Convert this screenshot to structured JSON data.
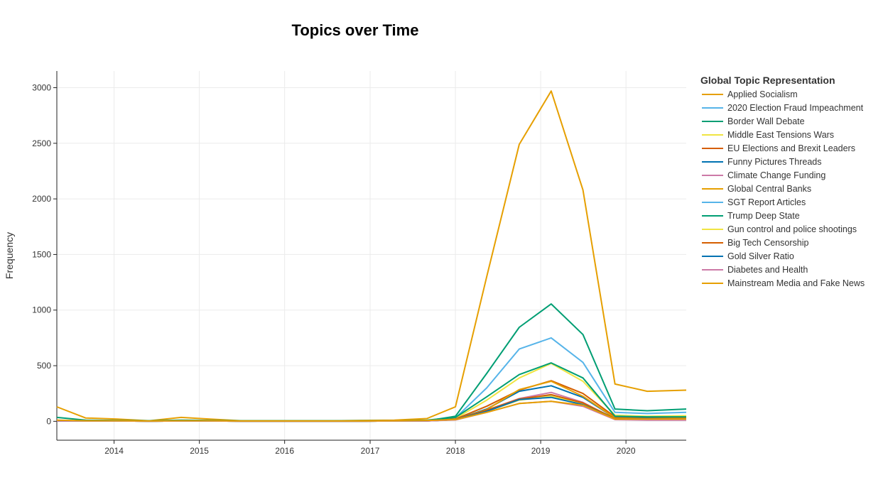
{
  "chart_data": {
    "type": "line",
    "title": "Topics over Time",
    "xlabel": "",
    "ylabel": "Frequency",
    "legend_title": "Global Topic Representation",
    "legend_position": "right",
    "grid": true,
    "xlim": [
      "2013-05-01",
      "2020-09-15"
    ],
    "ylim": [
      -170,
      3150
    ],
    "x_ticks": [
      "2014",
      "2015",
      "2016",
      "2017",
      "2018",
      "2019",
      "2020"
    ],
    "y_ticks": [
      "0",
      "500",
      "1000",
      "1500",
      "2000",
      "2500",
      "3000"
    ],
    "x": [
      "2013-05-01",
      "2013-09-01",
      "2014-01-15",
      "2014-06-01",
      "2014-10-15",
      "2015-02-15",
      "2015-07-01",
      "2015-11-15",
      "2016-03-15",
      "2016-08-01",
      "2016-12-01",
      "2017-04-15",
      "2017-09-01",
      "2018-01-01",
      "2018-05-15",
      "2018-10-01",
      "2019-02-15",
      "2019-07-01",
      "2019-11-15",
      "2020-04-01",
      "2020-09-15"
    ],
    "series": [
      {
        "name": "Applied Socialism",
        "color": "#E69F00",
        "values": [
          130,
          30,
          20,
          5,
          35,
          20,
          5,
          5,
          5,
          5,
          8,
          10,
          25,
          130,
          1300,
          2490,
          2970,
          2080,
          335,
          270,
          280
        ]
      },
      {
        "name": "2020 Election Fraud Impeachment",
        "color": "#56B4E9",
        "values": [
          5,
          3,
          3,
          2,
          3,
          3,
          2,
          2,
          2,
          2,
          2,
          3,
          5,
          30,
          300,
          650,
          750,
          530,
          80,
          70,
          80
        ]
      },
      {
        "name": "Border Wall Debate",
        "color": "#009E73",
        "values": [
          5,
          3,
          3,
          2,
          3,
          3,
          2,
          2,
          2,
          2,
          2,
          3,
          5,
          45,
          430,
          845,
          1055,
          780,
          110,
          95,
          110
        ]
      },
      {
        "name": "Middle East Tensions Wars",
        "color": "#F0E442",
        "values": [
          5,
          3,
          3,
          2,
          3,
          3,
          2,
          2,
          2,
          2,
          2,
          3,
          5,
          25,
          190,
          390,
          520,
          360,
          55,
          45,
          50
        ]
      },
      {
        "name": "EU Elections and Brexit Leaders",
        "color": "#D55E00",
        "values": [
          5,
          3,
          3,
          2,
          3,
          3,
          2,
          2,
          2,
          2,
          2,
          3,
          5,
          20,
          135,
          280,
          365,
          250,
          40,
          35,
          35
        ]
      },
      {
        "name": "Funny Pictures Threads",
        "color": "#0072B2",
        "values": [
          5,
          3,
          3,
          2,
          3,
          3,
          2,
          2,
          2,
          2,
          2,
          3,
          5,
          15,
          110,
          270,
          320,
          215,
          30,
          30,
          30
        ]
      },
      {
        "name": "Climate Change Funding",
        "color": "#CC79A7",
        "values": [
          4,
          3,
          3,
          2,
          3,
          3,
          2,
          2,
          2,
          2,
          2,
          3,
          4,
          15,
          100,
          205,
          260,
          170,
          20,
          15,
          15
        ]
      },
      {
        "name": "Global Central Banks",
        "color": "#E69F00",
        "values": [
          4,
          3,
          3,
          2,
          3,
          3,
          2,
          2,
          2,
          2,
          2,
          3,
          4,
          15,
          105,
          285,
          360,
          225,
          30,
          25,
          30
        ]
      },
      {
        "name": "SGT Report Articles",
        "color": "#56B4E9",
        "values": [
          4,
          3,
          3,
          2,
          3,
          3,
          2,
          2,
          2,
          2,
          2,
          3,
          4,
          15,
          90,
          200,
          230,
          160,
          25,
          20,
          20
        ]
      },
      {
        "name": "Trump Deep State",
        "color": "#009E73",
        "values": [
          35,
          10,
          8,
          5,
          10,
          8,
          5,
          5,
          5,
          5,
          5,
          5,
          10,
          35,
          220,
          420,
          525,
          390,
          45,
          40,
          40
        ]
      },
      {
        "name": "Gun control and police shootings",
        "color": "#F0E442",
        "values": [
          4,
          3,
          3,
          2,
          3,
          3,
          2,
          2,
          2,
          2,
          2,
          3,
          4,
          15,
          90,
          190,
          225,
          160,
          20,
          20,
          20
        ]
      },
      {
        "name": "Big Tech Censorship",
        "color": "#D55E00",
        "values": [
          4,
          3,
          3,
          2,
          3,
          3,
          2,
          2,
          2,
          2,
          2,
          3,
          4,
          15,
          100,
          200,
          240,
          165,
          25,
          25,
          25
        ]
      },
      {
        "name": "Gold Silver Ratio",
        "color": "#0072B2",
        "values": [
          4,
          3,
          3,
          2,
          3,
          3,
          2,
          2,
          2,
          2,
          2,
          3,
          4,
          15,
          90,
          195,
          215,
          150,
          20,
          20,
          20
        ]
      },
      {
        "name": "Diabetes and Health",
        "color": "#CC79A7",
        "values": [
          4,
          3,
          3,
          2,
          3,
          3,
          2,
          2,
          2,
          2,
          2,
          3,
          4,
          12,
          80,
          160,
          180,
          135,
          15,
          10,
          10
        ]
      },
      {
        "name": "Mainstream Media and Fake News",
        "color": "#E69F00",
        "values": [
          10,
          5,
          5,
          3,
          5,
          5,
          3,
          3,
          3,
          3,
          3,
          5,
          8,
          15,
          80,
          160,
          180,
          145,
          20,
          20,
          20
        ]
      }
    ]
  }
}
